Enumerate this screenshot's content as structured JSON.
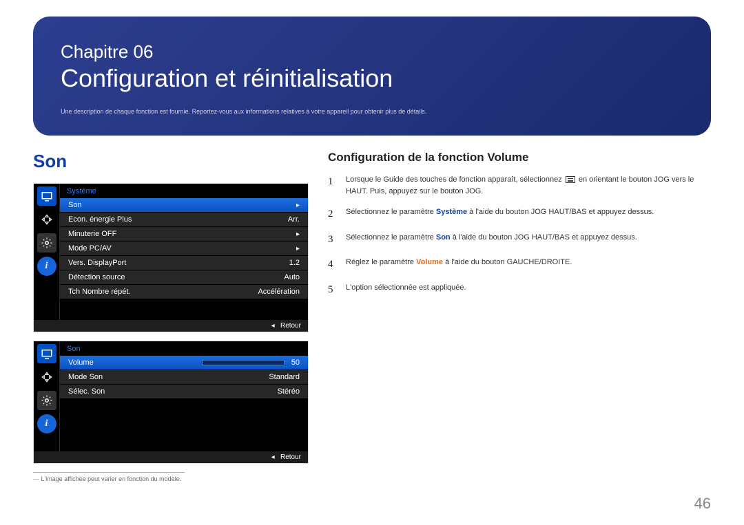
{
  "header": {
    "chapter_label": "Chapitre 06",
    "title": "Configuration et réinitialisation",
    "desc": "Une description de chaque fonction est fournie. Reportez-vous aux informations relatives à votre appareil pour obtenir plus de détails."
  },
  "section_title": "Son",
  "menu1": {
    "header": "Système",
    "rows": [
      {
        "label": "Son",
        "value": "",
        "arrow": true,
        "selected": true
      },
      {
        "label": "Econ. énergie Plus",
        "value": "Arr.",
        "arrow": false,
        "selected": false
      },
      {
        "label": "Minuterie OFF",
        "value": "",
        "arrow": true,
        "selected": false
      },
      {
        "label": "Mode PC/AV",
        "value": "",
        "arrow": true,
        "selected": false
      },
      {
        "label": "Vers. DisplayPort",
        "value": "1.2",
        "arrow": false,
        "selected": false
      },
      {
        "label": "Détection source",
        "value": "Auto",
        "arrow": false,
        "selected": false
      },
      {
        "label": "Tch Nombre répét.",
        "value": "Accélération",
        "arrow": false,
        "selected": false
      }
    ],
    "footer_left": "◂",
    "footer_right": "Retour"
  },
  "menu2": {
    "header": "Son",
    "volume_label": "Volume",
    "volume_value": "50",
    "volume_pct": 50,
    "rows": [
      {
        "label": "Mode Son",
        "value": "Standard"
      },
      {
        "label": "Sélec. Son",
        "value": "Stéréo"
      }
    ],
    "footer_left": "◂",
    "footer_right": "Retour"
  },
  "footnote": "L'image affichée peut varier en fonction du modèle.",
  "right": {
    "subheading": "Configuration de la fonction Volume",
    "steps": [
      {
        "n": "1",
        "pre": "Lorsque le Guide des touches de fonction apparaît, sélectionnez ",
        "post": " en orientant le bouton JOG vers le HAUT. Puis, appuyez sur le bouton JOG."
      },
      {
        "n": "2",
        "text": "Sélectionnez le paramètre ",
        "bold": "Système",
        "boldclass": "sys",
        "tail": " à l'aide du bouton JOG HAUT/BAS et appuyez dessus."
      },
      {
        "n": "3",
        "text": "Sélectionnez le paramètre ",
        "bold": "Son",
        "boldclass": "son",
        "tail": " à l'aide du bouton JOG HAUT/BAS et appuyez dessus."
      },
      {
        "n": "4",
        "text": "Réglez le paramètre ",
        "bold": "Volume",
        "boldclass": "vol",
        "tail": " à l'aide du bouton GAUCHE/DROITE."
      },
      {
        "n": "5",
        "text": "L'option sélectionnée est appliquée.",
        "bold": "",
        "boldclass": "",
        "tail": ""
      }
    ]
  },
  "page_number": "46",
  "colors": {
    "header_bg": "#243a8a",
    "accent_blue": "#1340a0",
    "accent_orange": "#e36b1f"
  }
}
